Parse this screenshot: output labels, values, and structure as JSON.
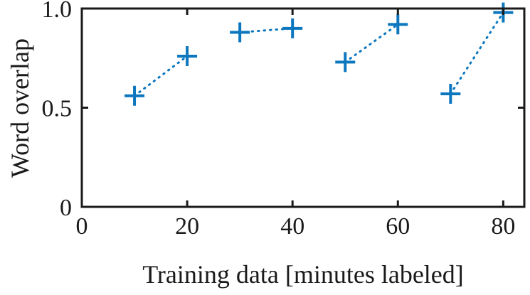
{
  "chart_data": {
    "type": "line",
    "title": "",
    "xlabel": "Training data [minutes labeled]",
    "ylabel": "Word overlap",
    "xlim": [
      0,
      84
    ],
    "ylim": [
      0,
      1
    ],
    "xticks": [
      0,
      20,
      40,
      60,
      80
    ],
    "xtick_labels": [
      "0",
      "20",
      "40",
      "60",
      "80"
    ],
    "yticks": [
      0,
      0.5,
      1
    ],
    "ytick_labels": [
      "0",
      "0.5",
      "1.0"
    ],
    "grid": false,
    "legend": null,
    "line_style": "dotted",
    "marker": "plus",
    "line_color": "#0c77be",
    "axis_color": "#1a1a1a",
    "background": "#ffffff",
    "series": [
      {
        "name": "segment-1",
        "x": [
          10,
          20
        ],
        "y": [
          0.56,
          0.76
        ]
      },
      {
        "name": "segment-2",
        "x": [
          30,
          40
        ],
        "y": [
          0.88,
          0.9
        ]
      },
      {
        "name": "segment-3",
        "x": [
          50,
          60
        ],
        "y": [
          0.73,
          0.92
        ]
      },
      {
        "name": "segment-4",
        "x": [
          70,
          80
        ],
        "y": [
          0.57,
          0.98
        ]
      }
    ]
  }
}
